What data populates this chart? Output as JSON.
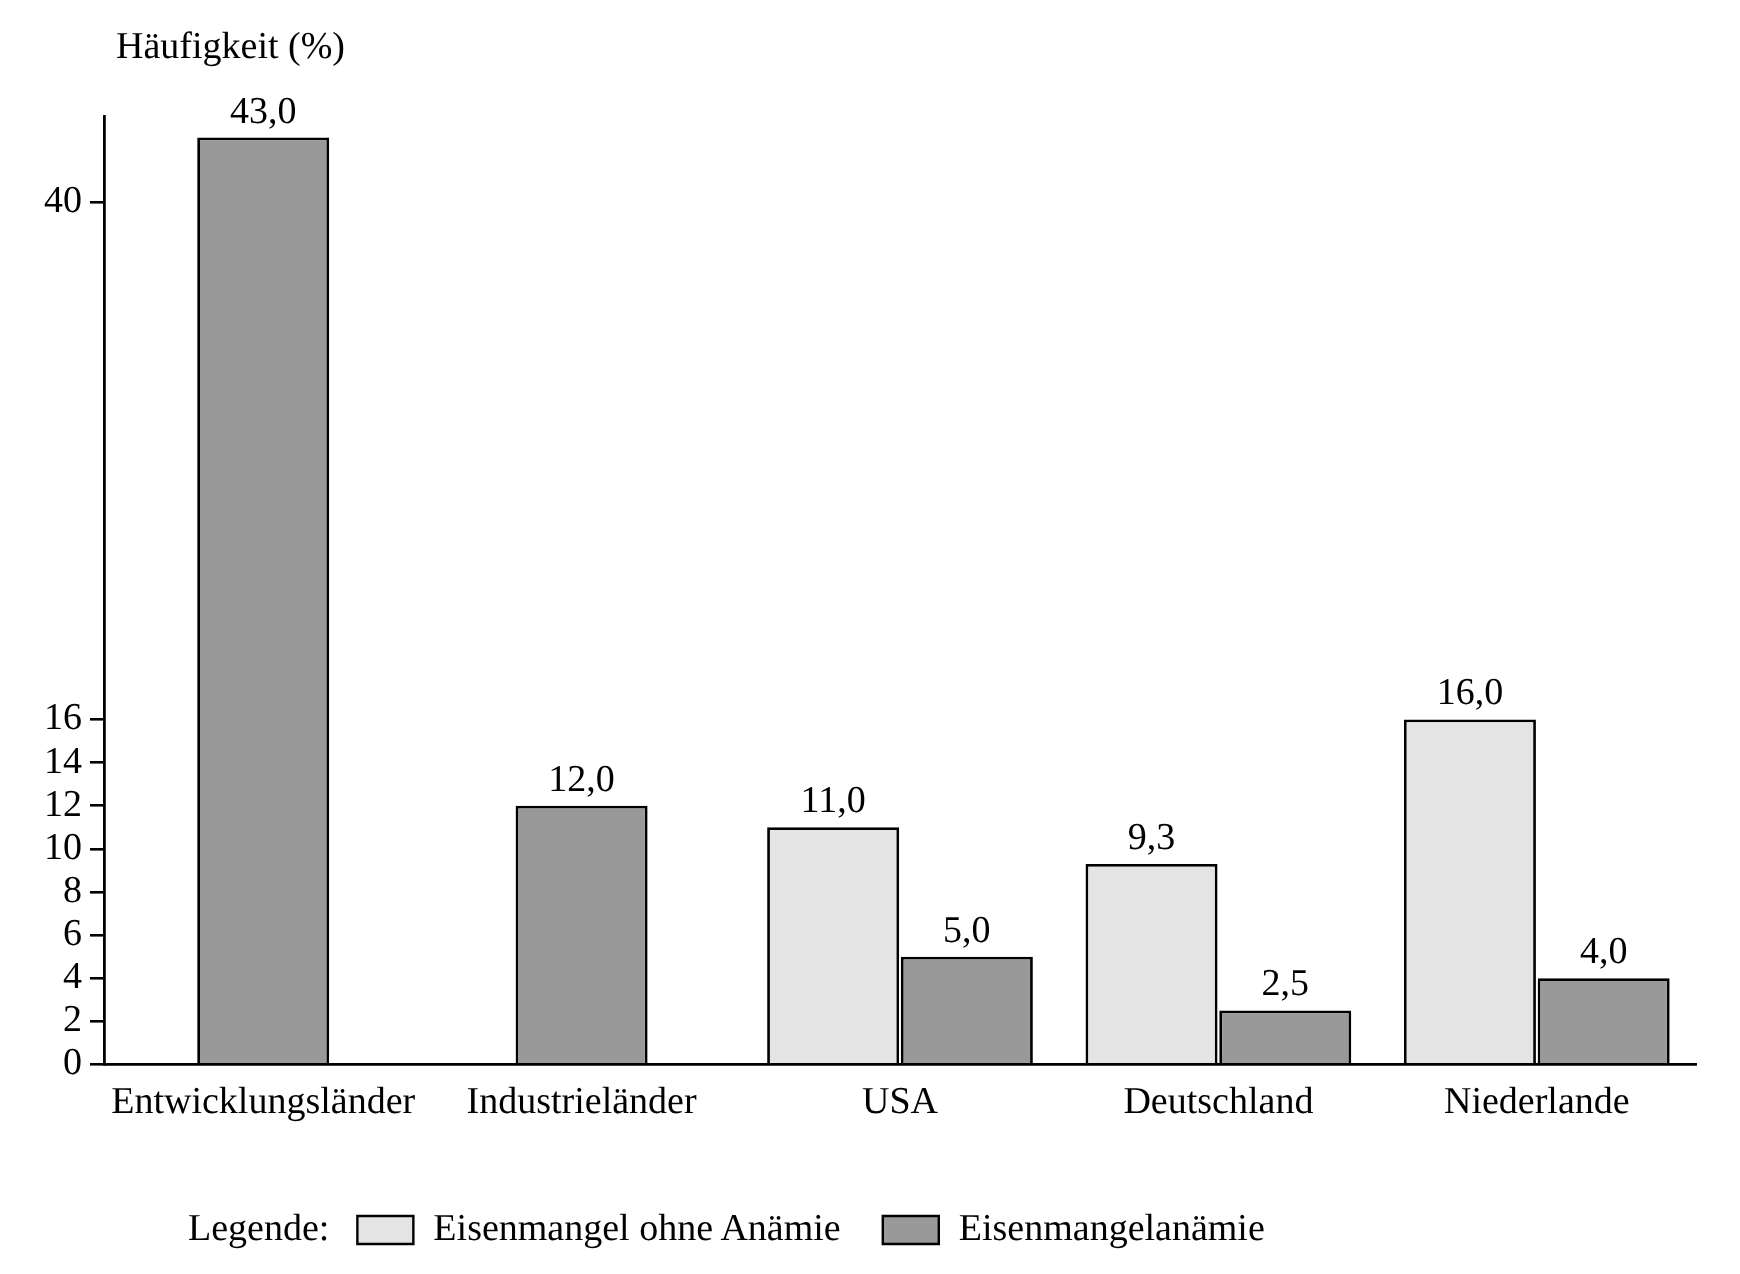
{
  "chart_data": {
    "type": "bar",
    "ylabel": "Häufigkeit (%)",
    "legend_title": "Legende:",
    "categories": [
      "Entwicklungsländer",
      "Industrieländer",
      "USA",
      "Deutschland",
      "Niederlande"
    ],
    "series": [
      {
        "name": "Eisenmangel ohne Anämie",
        "color": "#e4e4e4",
        "values": [
          null,
          null,
          11,
          9.3,
          16
        ],
        "value_labels": [
          null,
          null,
          "11,0",
          "9,3",
          "16,0"
        ]
      },
      {
        "name": "Eisenmangelanämie",
        "color": "#999999",
        "values": [
          43,
          12,
          5,
          2.5,
          4
        ],
        "value_labels": [
          "43,0",
          "12,0",
          "5,0",
          "2,5",
          "4,0"
        ]
      }
    ],
    "ylim": [
      0,
      44
    ],
    "yticks": [
      0,
      2,
      4,
      6,
      8,
      10,
      12,
      14,
      16,
      40
    ],
    "grid": false,
    "legend": "bottom"
  }
}
